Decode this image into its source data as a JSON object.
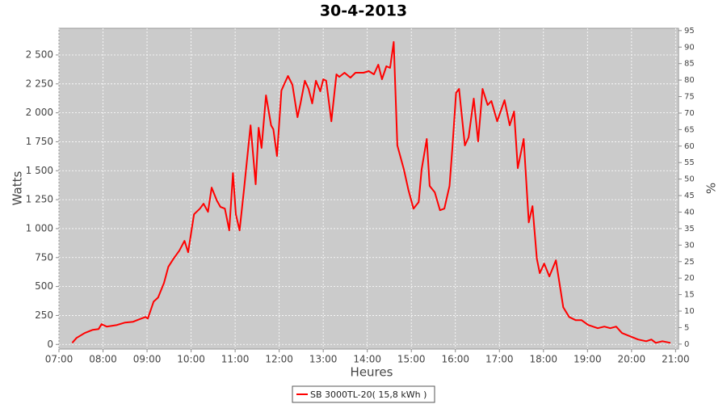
{
  "chart_data": {
    "type": "line",
    "title": "30-4-2013",
    "x_label": "Heures",
    "y_label": "Watts",
    "y2_label": "%",
    "x": [
      "07:18",
      "07:24",
      "07:35",
      "07:46",
      "07:54",
      "07:58",
      "08:05",
      "08:19",
      "08:30",
      "08:41",
      "08:49",
      "08:58",
      "09:01",
      "09:09",
      "09:15",
      "09:23",
      "09:29",
      "09:36",
      "09:44",
      "09:51",
      "09:56",
      "10:04",
      "10:12",
      "10:17",
      "10:23",
      "10:28",
      "10:35",
      "10:40",
      "10:46",
      "10:52",
      "10:57",
      "11:01",
      "11:06",
      "11:12",
      "11:17",
      "11:21",
      "11:28",
      "11:32",
      "11:36",
      "11:42",
      "11:49",
      "11:52",
      "11:57",
      "12:03",
      "12:07",
      "12:12",
      "12:18",
      "12:25",
      "12:29",
      "12:35",
      "12:40",
      "12:45",
      "12:50",
      "12:56",
      "13:00",
      "13:04",
      "13:11",
      "13:18",
      "13:22",
      "13:29",
      "13:37",
      "13:44",
      "13:55",
      "14:02",
      "14:09",
      "14:15",
      "14:20",
      "14:26",
      "14:31",
      "14:36",
      "14:41",
      "14:50",
      "14:56",
      "15:03",
      "15:10",
      "15:14",
      "15:21",
      "15:25",
      "15:32",
      "15:39",
      "15:45",
      "15:52",
      "15:56",
      "16:01",
      "16:05",
      "16:13",
      "16:18",
      "16:25",
      "16:31",
      "16:37",
      "16:44",
      "16:49",
      "16:57",
      "17:07",
      "17:14",
      "17:20",
      "17:25",
      "17:33",
      "17:40",
      "17:45",
      "17:51",
      "17:55",
      "18:01",
      "18:08",
      "18:17",
      "18:27",
      "18:35",
      "18:44",
      "18:52",
      "19:01",
      "19:14",
      "19:23",
      "19:31",
      "19:39",
      "19:47",
      "19:58",
      "20:09",
      "20:20",
      "20:27",
      "20:33",
      "20:42",
      "20:53"
    ],
    "series": [
      {
        "name": "SB 3000TL-20( 15,8 kWh )",
        "color": "#ff0000",
        "values": [
          14,
          56,
          98,
          126,
          133,
          175,
          154,
          168,
          189,
          196,
          216,
          237,
          223,
          370,
          405,
          531,
          670,
          740,
          810,
          894,
          796,
          1124,
          1173,
          1215,
          1145,
          1355,
          1243,
          1187,
          1173,
          985,
          1480,
          1124,
          985,
          1334,
          1648,
          1892,
          1383,
          1871,
          1697,
          2151,
          1892,
          1858,
          1627,
          2193,
          2249,
          2318,
          2242,
          1962,
          2081,
          2277,
          2207,
          2081,
          2277,
          2186,
          2290,
          2277,
          1927,
          2332,
          2311,
          2346,
          2304,
          2346,
          2346,
          2360,
          2332,
          2416,
          2290,
          2402,
          2388,
          2612,
          1718,
          1508,
          1334,
          1173,
          1229,
          1508,
          1774,
          1369,
          1313,
          1159,
          1173,
          1369,
          1704,
          2172,
          2207,
          1718,
          1788,
          2123,
          1753,
          2207,
          2067,
          2102,
          1927,
          2109,
          1892,
          2011,
          1522,
          1774,
          1054,
          1194,
          740,
          615,
          698,
          587,
          726,
          321,
          237,
          209,
          209,
          168,
          140,
          154,
          140,
          154,
          98,
          70,
          42,
          28,
          42,
          14,
          28,
          14
        ]
      }
    ],
    "xlim": [
      "07:00",
      "21:04"
    ],
    "xticks": [
      "07:00",
      "08:00",
      "09:00",
      "10:00",
      "11:00",
      "12:00",
      "13:00",
      "14:00",
      "15:00",
      "16:00",
      "17:00",
      "18:00",
      "19:00",
      "20:00",
      "21:00"
    ],
    "ylim": [
      -40,
      2730
    ],
    "yticks": [
      0,
      250,
      500,
      750,
      {
        "value": 1000,
        "label": "1 000"
      },
      {
        "value": 1250,
        "label": "1 250"
      },
      {
        "value": 1500,
        "label": "1 500"
      },
      {
        "value": 1750,
        "label": "1 750"
      },
      {
        "value": 2000,
        "label": "2 000"
      },
      {
        "value": 2250,
        "label": "2 250"
      },
      {
        "value": 2500,
        "label": "2 500"
      }
    ],
    "y2lim": [
      -1.5,
      95.7
    ],
    "y2ticks": [
      0,
      5,
      10,
      15,
      20,
      25,
      30,
      35,
      40,
      45,
      50,
      55,
      60,
      65,
      70,
      75,
      80,
      85,
      90,
      95
    ],
    "grid": true,
    "background": "#cbcbcb",
    "legend": "bottom"
  }
}
